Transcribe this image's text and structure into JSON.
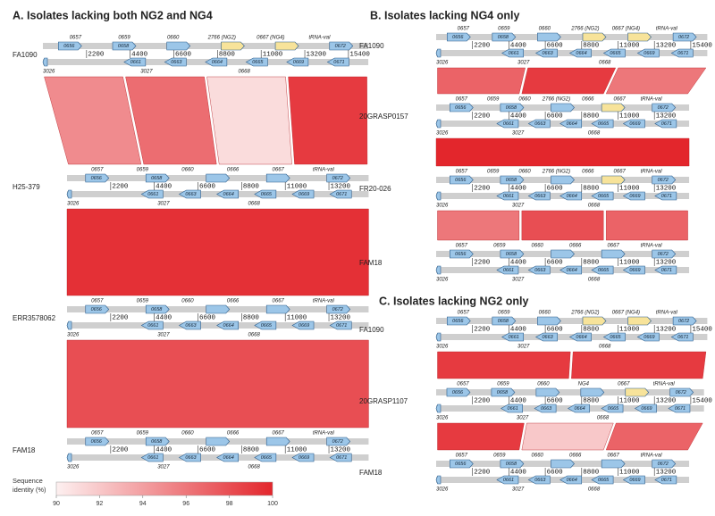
{
  "panels": [
    {
      "title": "A. Isolates lacking both NG2 and NG4",
      "tracks": [
        {
          "name": "FA1090",
          "xlim": [
            0,
            16400
          ],
          "xticks": [
            2200,
            4400,
            6600,
            8800,
            11000,
            13200,
            15400
          ],
          "labels_above": [
            "0657",
            "0659",
            "0660",
            "2766 (NG2)",
            "0667 (NG4)",
            "tRNA-val"
          ],
          "genes_top": [
            {
              "name": "0656",
              "color": "#9cc6e8"
            },
            {
              "name": "0658",
              "color": "#9cc6e8"
            },
            {
              "name": null,
              "color": "#9cc6e8"
            },
            {
              "name": null,
              "color": "#f7e39a"
            },
            {
              "name": null,
              "color": "#f7e39a"
            },
            {
              "name": "0672",
              "color": "#9cc6e8"
            }
          ],
          "genes_bottom": [
            "0661",
            "0663",
            "0664",
            "0665",
            "0669",
            "0671"
          ],
          "labels_below": [
            "3026",
            "3027",
            "0668"
          ]
        },
        {
          "name": "H25-379",
          "xlim": [
            0,
            15200
          ],
          "xticks": [
            2200,
            4400,
            6600,
            8800,
            11000,
            13200
          ],
          "labels_above": [
            "0657",
            "0659",
            "0660",
            "0666",
            "0667",
            "tRNA-val"
          ],
          "genes_top": [
            {
              "name": "0656",
              "color": "#9cc6e8"
            },
            {
              "name": "0658",
              "color": "#9cc6e8"
            },
            {
              "name": null,
              "color": "#9cc6e8"
            },
            {
              "name": null,
              "color": "#9cc6e8"
            },
            {
              "name": "0672",
              "color": "#9cc6e8"
            }
          ],
          "genes_bottom": [
            "0661",
            "0663",
            "0664",
            "0665",
            "0669",
            "0671"
          ],
          "labels_below": [
            "3026",
            "3027",
            "0668"
          ]
        },
        {
          "name": "ERR3578062",
          "xlim": [
            0,
            15200
          ],
          "xticks": [
            2200,
            4400,
            6600,
            8800,
            11000,
            13200
          ],
          "labels_above": [
            "0657",
            "0659",
            "0660",
            "0666",
            "0667",
            "tRNA-val"
          ],
          "genes_top": [
            {
              "name": "0656",
              "color": "#9cc6e8"
            },
            {
              "name": "0658",
              "color": "#9cc6e8"
            },
            {
              "name": null,
              "color": "#9cc6e8"
            },
            {
              "name": null,
              "color": "#9cc6e8"
            },
            {
              "name": "0672",
              "color": "#9cc6e8"
            }
          ],
          "genes_bottom": [
            "0661",
            "0663",
            "0664",
            "0665",
            "0669",
            "0671"
          ],
          "labels_below": [
            "3026",
            "3027",
            "0668"
          ]
        },
        {
          "name": "FAM18",
          "xlim": [
            0,
            15200
          ],
          "xticks": [
            2200,
            4400,
            6600,
            8800,
            11000,
            13200
          ],
          "labels_above": [
            "0657",
            "0659",
            "0660",
            "0666",
            "0667",
            "tRNA-val"
          ],
          "genes_top": [
            {
              "name": "0656",
              "color": "#9cc6e8"
            },
            {
              "name": "0658",
              "color": "#9cc6e8"
            },
            {
              "name": null,
              "color": "#9cc6e8"
            },
            {
              "name": null,
              "color": "#9cc6e8"
            },
            {
              "name": "0672",
              "color": "#9cc6e8"
            }
          ],
          "genes_bottom": [
            "0661",
            "0663",
            "0664",
            "0665",
            "0669",
            "0671"
          ],
          "labels_below": [
            "3026",
            "3027",
            "0668"
          ]
        }
      ],
      "comparisons": [
        {
          "identity": [
            95,
            96.5,
            91,
            99
          ]
        },
        {
          "identity": [
            99.5
          ]
        },
        {
          "identity": [
            98
          ]
        }
      ]
    },
    {
      "title": "B. Isolates lacking NG4 only",
      "tracks": [
        {
          "name": "FA1090",
          "xlim": [
            0,
            16400
          ],
          "xticks": [
            2200,
            4400,
            6600,
            8800,
            11000,
            13200,
            15400
          ],
          "labels_above": [
            "0657",
            "0659",
            "0660",
            "2766 (NG2)",
            "0667 (NG4)",
            "tRNA-val"
          ],
          "genes_top": [
            {
              "name": "0656",
              "color": "#9cc6e8"
            },
            {
              "name": "0658",
              "color": "#9cc6e8"
            },
            {
              "name": null,
              "color": "#9cc6e8"
            },
            {
              "name": null,
              "color": "#f7e39a"
            },
            {
              "name": null,
              "color": "#f7e39a"
            },
            {
              "name": "0672",
              "color": "#9cc6e8"
            }
          ],
          "genes_bottom": [
            "0661",
            "0663",
            "0664",
            "0665",
            "0669",
            "0671"
          ],
          "labels_below": [
            "3026",
            "3027",
            "0668"
          ]
        },
        {
          "name": "20GRASP0157",
          "xlim": [
            0,
            15300
          ],
          "xticks": [
            2200,
            4400,
            6600,
            8800,
            11000,
            13200
          ],
          "labels_above": [
            "0657",
            "0659",
            "0660",
            "2766 (NG2)",
            "0666",
            "0667",
            "tRNA-val"
          ],
          "genes_top": [
            {
              "name": "0656",
              "color": "#9cc6e8"
            },
            {
              "name": "0658",
              "color": "#9cc6e8"
            },
            {
              "name": null,
              "color": "#9cc6e8"
            },
            {
              "name": null,
              "color": "#f7e39a"
            },
            {
              "name": "0672",
              "color": "#9cc6e8"
            }
          ],
          "genes_bottom": [
            "0661",
            "0663",
            "0664",
            "0665",
            "0669",
            "0671"
          ],
          "labels_below": [
            "3026",
            "3027",
            "0668"
          ]
        },
        {
          "name": "FR20-026",
          "xlim": [
            0,
            15300
          ],
          "xticks": [
            2200,
            4400,
            6600,
            8800,
            11000,
            13200
          ],
          "labels_above": [
            "0657",
            "0659",
            "0660",
            "2766 (NG2)",
            "0666",
            "0667",
            "tRNA-val"
          ],
          "genes_top": [
            {
              "name": "0656",
              "color": "#9cc6e8"
            },
            {
              "name": "0658",
              "color": "#9cc6e8"
            },
            {
              "name": null,
              "color": "#9cc6e8"
            },
            {
              "name": null,
              "color": "#f7e39a"
            },
            {
              "name": "0672",
              "color": "#9cc6e8"
            }
          ],
          "genes_bottom": [
            "0661",
            "0663",
            "0664",
            "0665",
            "0669",
            "0671"
          ],
          "labels_below": [
            "3026",
            "3027",
            "0668"
          ]
        },
        {
          "name": "FAM18",
          "xlim": [
            0,
            15300
          ],
          "xticks": [
            2200,
            4400,
            6600,
            8800,
            11000,
            13200
          ],
          "labels_above": [
            "0657",
            "0659",
            "0660",
            "0666",
            "0667",
            "tRNA-val"
          ],
          "genes_top": [
            {
              "name": "0656",
              "color": "#9cc6e8"
            },
            {
              "name": "0658",
              "color": "#9cc6e8"
            },
            {
              "name": null,
              "color": "#9cc6e8"
            },
            {
              "name": null,
              "color": "#9cc6e8"
            },
            {
              "name": "0672",
              "color": "#9cc6e8"
            }
          ],
          "genes_bottom": [
            "0661",
            "0663",
            "0664",
            "0665",
            "0669",
            "0671"
          ],
          "labels_below": [
            "3026",
            "3027",
            "0668"
          ]
        }
      ],
      "comparisons": [
        {
          "identity": [
            97,
            99,
            96
          ]
        },
        {
          "identity": [
            100
          ]
        },
        {
          "identity": [
            96,
            98,
            97
          ]
        }
      ]
    },
    {
      "title": "C. Isolates lacking NG2 only",
      "tracks": [
        {
          "name": "FA1090",
          "xlim": [
            0,
            16400
          ],
          "xticks": [
            2200,
            4400,
            6600,
            8800,
            11000,
            13200,
            15400
          ],
          "labels_above": [
            "0657",
            "0659",
            "0660",
            "2766 (NG2)",
            "0667 (NG4)",
            "tRNA-val"
          ],
          "genes_top": [
            {
              "name": "0656",
              "color": "#9cc6e8"
            },
            {
              "name": "0658",
              "color": "#9cc6e8"
            },
            {
              "name": null,
              "color": "#9cc6e8"
            },
            {
              "name": null,
              "color": "#f7e39a"
            },
            {
              "name": null,
              "color": "#f7e39a"
            },
            {
              "name": "0672",
              "color": "#9cc6e8"
            }
          ],
          "genes_bottom": [
            "0661",
            "0663",
            "0664",
            "0665",
            "0669",
            "0671"
          ],
          "labels_below": [
            "3026",
            "3027",
            "0668"
          ]
        },
        {
          "name": "20GRASP1107",
          "xlim": [
            0,
            16200
          ],
          "xticks": [
            2200,
            4400,
            6600,
            8800,
            11000,
            13200,
            15400
          ],
          "labels_above": [
            "0657",
            "0659",
            "0660",
            "NG4",
            "0667",
            "tRNA-val"
          ],
          "genes_top": [
            {
              "name": "0656",
              "color": "#9cc6e8"
            },
            {
              "name": "0658",
              "color": "#9cc6e8"
            },
            {
              "name": null,
              "color": "#9cc6e8"
            },
            {
              "name": null,
              "color": "#9cc6e8"
            },
            {
              "name": null,
              "color": "#f7e39a"
            },
            {
              "name": "0672",
              "color": "#9cc6e8"
            }
          ],
          "genes_bottom": [
            "0661",
            "0663",
            "0664",
            "0665",
            "0669",
            "0671"
          ],
          "labels_below": [
            "3026",
            "3027",
            "0668"
          ]
        },
        {
          "name": "FAM18",
          "xlim": [
            0,
            15300
          ],
          "xticks": [
            2200,
            4400,
            6600,
            8800,
            11000,
            13200
          ],
          "labels_above": [
            "0657",
            "0659",
            "0660",
            "0666",
            "0667",
            "tRNA-val"
          ],
          "genes_top": [
            {
              "name": "0656",
              "color": "#9cc6e8"
            },
            {
              "name": "0658",
              "color": "#9cc6e8"
            },
            {
              "name": null,
              "color": "#9cc6e8"
            },
            {
              "name": null,
              "color": "#9cc6e8"
            },
            {
              "name": "0672",
              "color": "#9cc6e8"
            }
          ],
          "genes_bottom": [
            "0661",
            "0663",
            "0664",
            "0665",
            "0669",
            "0671"
          ],
          "labels_below": [
            "3026",
            "3027",
            "0668"
          ]
        }
      ],
      "comparisons": [
        {
          "identity": [
            99,
            99
          ]
        },
        {
          "identity": [
            99,
            92,
            97
          ]
        }
      ]
    }
  ],
  "legend": {
    "title": "Sequence identity (%)",
    "lim": [
      90,
      100
    ],
    "ticks": [
      90,
      92,
      94,
      96,
      98,
      100
    ],
    "colors": [
      "#fdf0f0",
      "#e3262c"
    ]
  }
}
